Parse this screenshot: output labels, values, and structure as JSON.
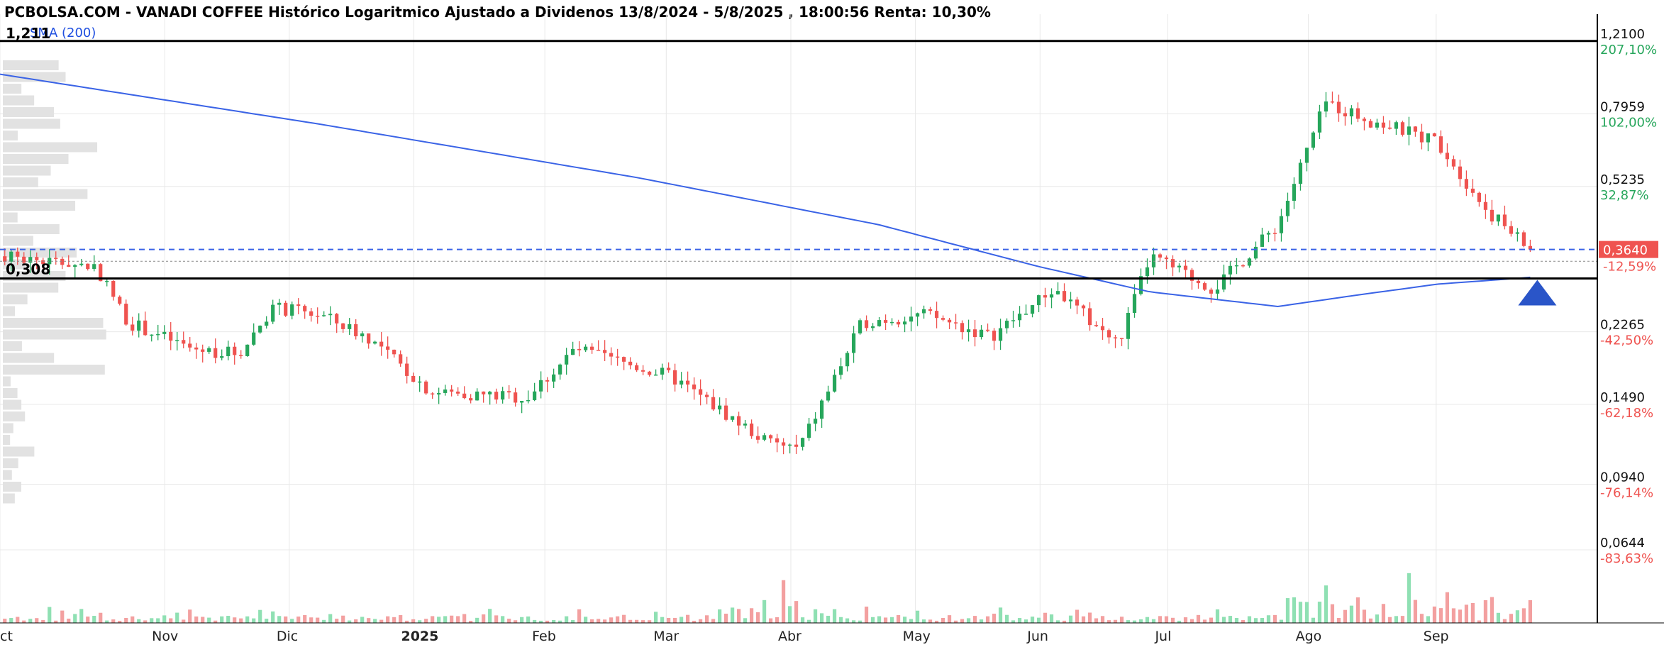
{
  "header": {
    "title": "PCBOLSA.COM - VANADI COFFEE Histórico Logaritmico Ajustado a Dividenos 13/8/2024 - 5/8/2025 , 18:00:56 Renta: 10,30%",
    "sma_label": "SMA (200)",
    "resistance_label": "1,211",
    "support_label": "0,308"
  },
  "colors": {
    "up": "#26a65b",
    "down": "#ef5350",
    "volume_up": "#8fe0b3",
    "volume_down": "#f3a0a0",
    "sma": "#3a63e6",
    "current_price_tag": "#ef5350",
    "level_line": "#000000",
    "marker": "#2a55c8",
    "grid": "#e8e8e8",
    "profile": "#e2e2e2"
  },
  "chart_data": {
    "type": "candlestick",
    "y_scale": "log",
    "y_ticks": [
      {
        "price": 1.21,
        "label": "1,2100",
        "pct": "207,10%",
        "pct_color": "#26a65b"
      },
      {
        "price": 0.7959,
        "label": "0,7959",
        "pct": "102,00%",
        "pct_color": "#26a65b"
      },
      {
        "price": 0.5235,
        "label": "0,5235",
        "pct": "32,87%",
        "pct_color": "#26a65b"
      },
      {
        "price": 0.2265,
        "label": "0,2265",
        "pct": "-42,50%",
        "pct_color": "#ef5350"
      },
      {
        "price": 0.149,
        "label": "0,1490",
        "pct": "-62,18%",
        "pct_color": "#ef5350"
      },
      {
        "price": 0.094,
        "label": "0,0940",
        "pct": "-76,14%",
        "pct_color": "#ef5350"
      },
      {
        "price": 0.0644,
        "label": "0,0644",
        "pct": "-83,63%",
        "pct_color": "#ef5350"
      }
    ],
    "x_labels": [
      "Oct",
      "Nov",
      "Dic",
      "2025",
      "Feb",
      "Mar",
      "Abr",
      "May",
      "Jun",
      "Jul",
      "Ago",
      "Sep"
    ],
    "current_price": {
      "value": 0.364,
      "label": "0,3640",
      "pct": "-12,59%"
    },
    "reference_price": 0.34,
    "levels": {
      "resistance": 1.211,
      "support": 0.308
    },
    "monthly_path": [
      {
        "t": 0,
        "p": 0.35
      },
      {
        "t": 0.06,
        "p": 0.33
      },
      {
        "t": 0.08,
        "p": 0.24
      },
      {
        "t": 0.12,
        "p": 0.205
      },
      {
        "t": 0.15,
        "p": 0.2
      },
      {
        "t": 0.17,
        "p": 0.26
      },
      {
        "t": 0.2,
        "p": 0.25
      },
      {
        "t": 0.23,
        "p": 0.22
      },
      {
        "t": 0.27,
        "p": 0.16
      },
      {
        "t": 0.33,
        "p": 0.155
      },
      {
        "t": 0.36,
        "p": 0.205
      },
      {
        "t": 0.42,
        "p": 0.175
      },
      {
        "t": 0.48,
        "p": 0.12
      },
      {
        "t": 0.5,
        "p": 0.115
      },
      {
        "t": 0.54,
        "p": 0.24
      },
      {
        "t": 0.58,
        "p": 0.25
      },
      {
        "t": 0.62,
        "p": 0.22
      },
      {
        "t": 0.66,
        "p": 0.29
      },
      {
        "t": 0.7,
        "p": 0.21
      },
      {
        "t": 0.72,
        "p": 0.35
      },
      {
        "t": 0.76,
        "p": 0.29
      },
      {
        "t": 0.8,
        "p": 0.42
      },
      {
        "t": 0.83,
        "p": 0.85
      },
      {
        "t": 0.86,
        "p": 0.76
      },
      {
        "t": 0.9,
        "p": 0.68
      },
      {
        "t": 0.93,
        "p": 0.46
      },
      {
        "t": 0.958,
        "p": 0.364
      }
    ],
    "sma_path": [
      {
        "t": 0,
        "p": 1.0
      },
      {
        "t": 0.2,
        "p": 0.75
      },
      {
        "t": 0.4,
        "p": 0.55
      },
      {
        "t": 0.55,
        "p": 0.42
      },
      {
        "t": 0.65,
        "p": 0.33
      },
      {
        "t": 0.72,
        "p": 0.285
      },
      {
        "t": 0.8,
        "p": 0.262
      },
      {
        "t": 0.85,
        "p": 0.28
      },
      {
        "t": 0.9,
        "p": 0.298
      },
      {
        "t": 0.958,
        "p": 0.31
      }
    ]
  }
}
